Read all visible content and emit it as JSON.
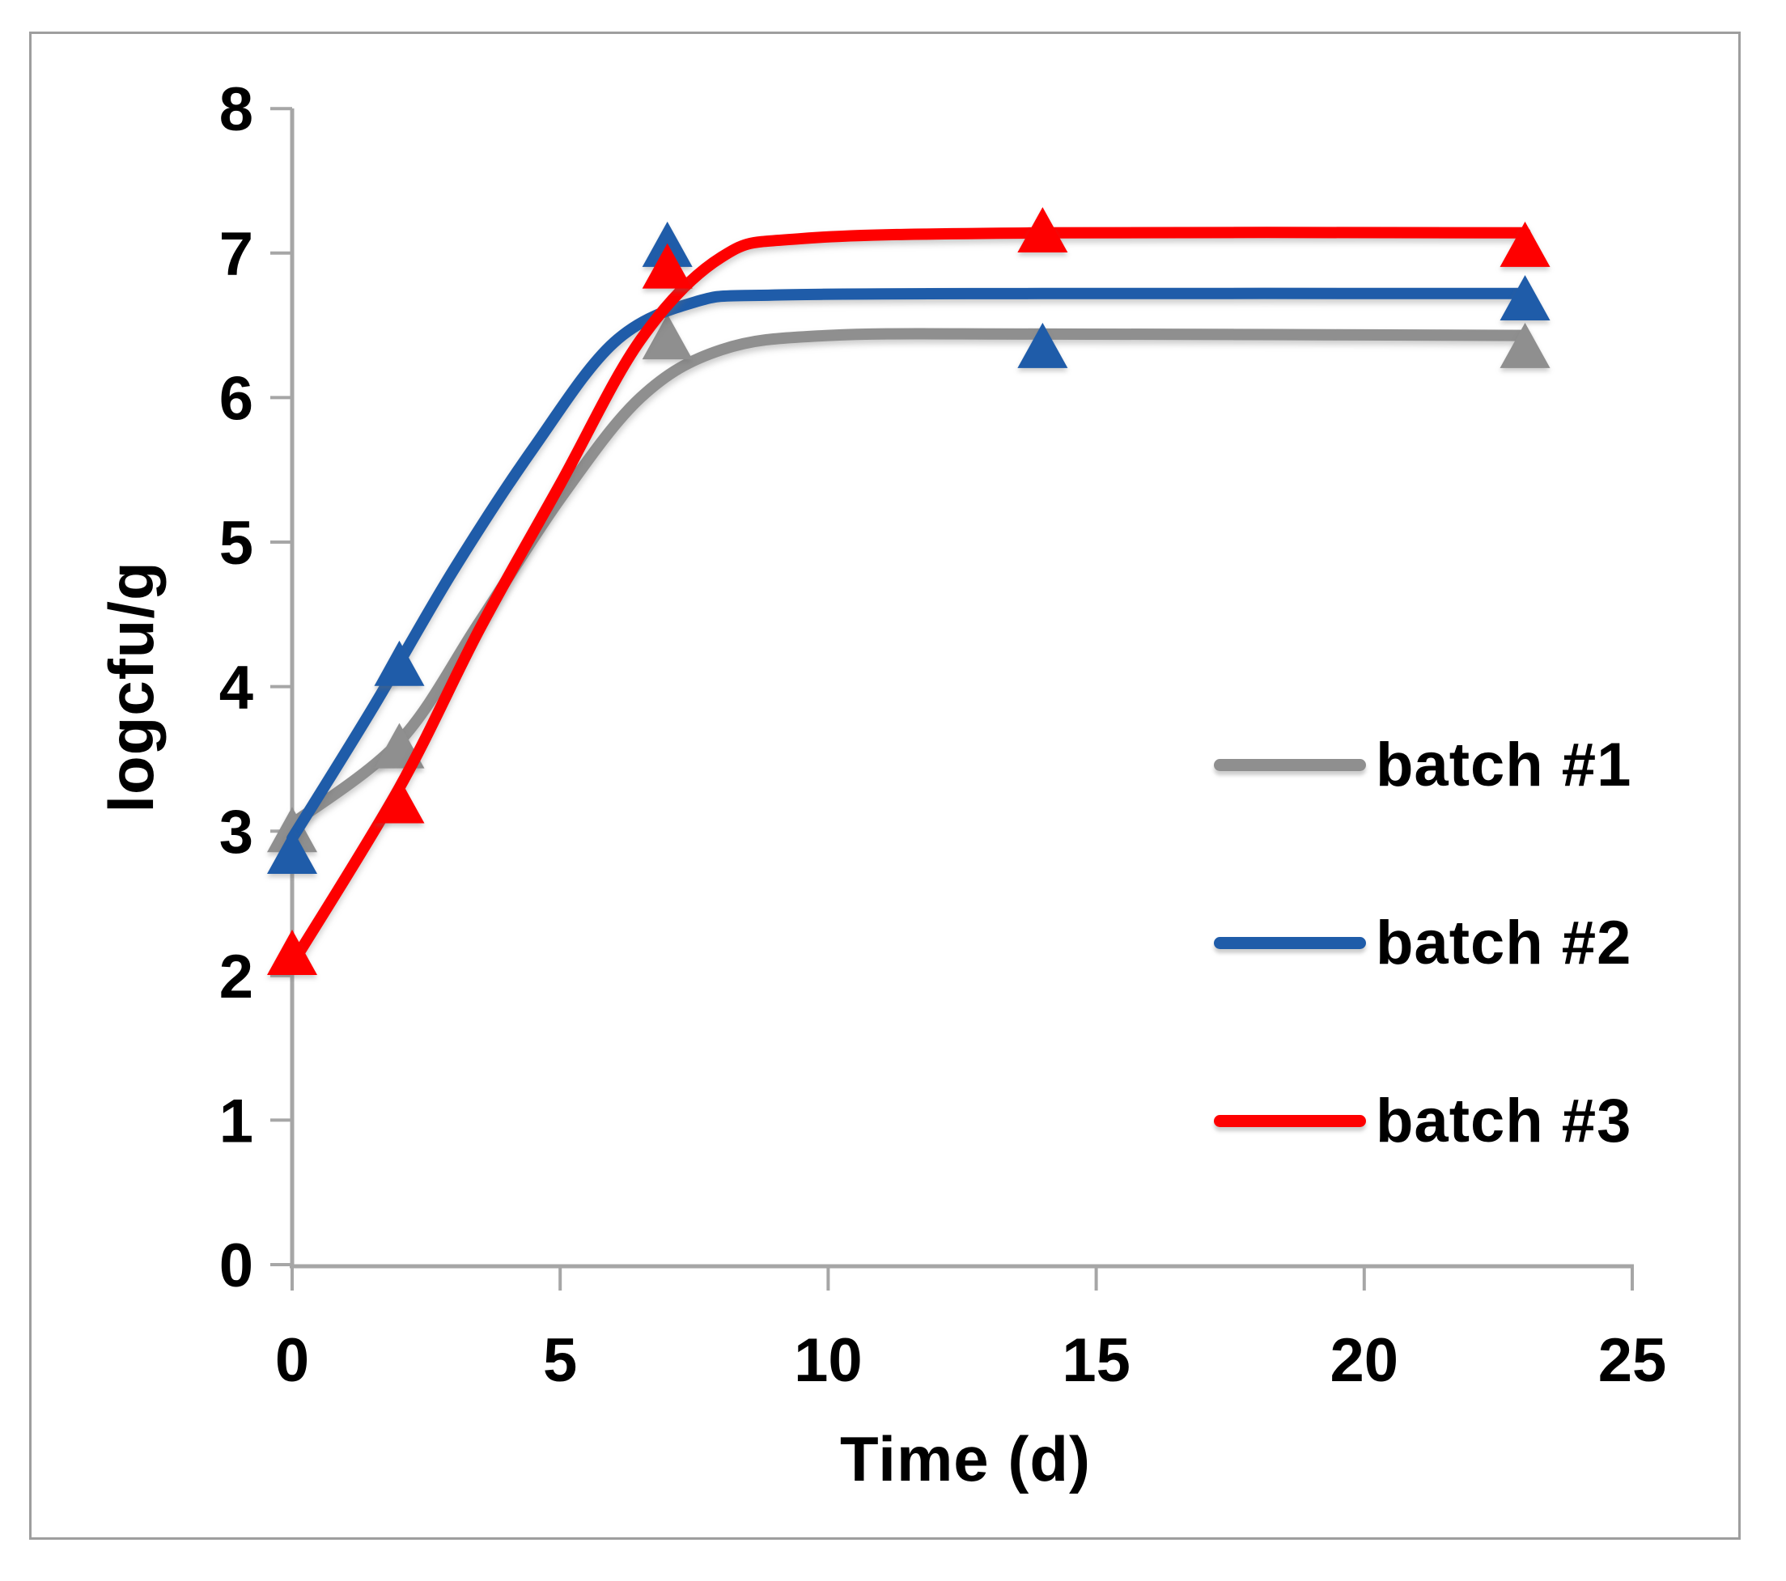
{
  "figure": {
    "background": "#ffffff",
    "border_color": "#9e9e9e"
  },
  "chart_data": {
    "type": "line",
    "title": "",
    "xlabel": "Time (d)",
    "ylabel": "logcfu/g",
    "xlim": [
      0,
      25
    ],
    "ylim": [
      0,
      8
    ],
    "x_ticks": [
      0,
      5,
      10,
      15,
      20,
      25
    ],
    "y_ticks": [
      0,
      1,
      2,
      3,
      4,
      5,
      6,
      7,
      8
    ],
    "grid": false,
    "axis_color": "#a6a6a6",
    "tick_label_color": "#000000",
    "legend_position": "center-right",
    "marker_shape": "triangle-up",
    "series": [
      {
        "name": "batch #1",
        "color": "#8f8f8f",
        "points": {
          "x": [
            0,
            2,
            7,
            23
          ],
          "y": [
            3.0,
            3.58,
            6.41,
            6.35
          ]
        },
        "fitted_curve": {
          "x": [
            0,
            2,
            3.5,
            5,
            6.5,
            8,
            10,
            14,
            23
          ],
          "y": [
            3.05,
            3.62,
            4.45,
            5.3,
            6.0,
            6.33,
            6.43,
            6.44,
            6.43
          ]
        }
      },
      {
        "name": "batch #2",
        "color": "#1f5ca9",
        "points": {
          "x": [
            0,
            2,
            7,
            14,
            23
          ],
          "y": [
            2.85,
            4.15,
            7.05,
            6.35,
            6.68
          ]
        },
        "fitted_curve": {
          "x": [
            0,
            1.5,
            3,
            4.5,
            6,
            7.5,
            9,
            14,
            23
          ],
          "y": [
            2.95,
            3.85,
            4.8,
            5.65,
            6.38,
            6.66,
            6.71,
            6.72,
            6.72
          ]
        }
      },
      {
        "name": "batch #3",
        "color": "#fe0000",
        "points": {
          "x": [
            0,
            2,
            7,
            14,
            23
          ],
          "y": [
            2.15,
            3.2,
            6.9,
            7.15,
            7.05
          ]
        },
        "fitted_curve": {
          "x": [
            0,
            2,
            3.5,
            5,
            6.5,
            8,
            9.5,
            14,
            23
          ],
          "y": [
            2.08,
            3.3,
            4.4,
            5.4,
            6.4,
            6.97,
            7.1,
            7.14,
            7.14
          ]
        }
      }
    ]
  }
}
